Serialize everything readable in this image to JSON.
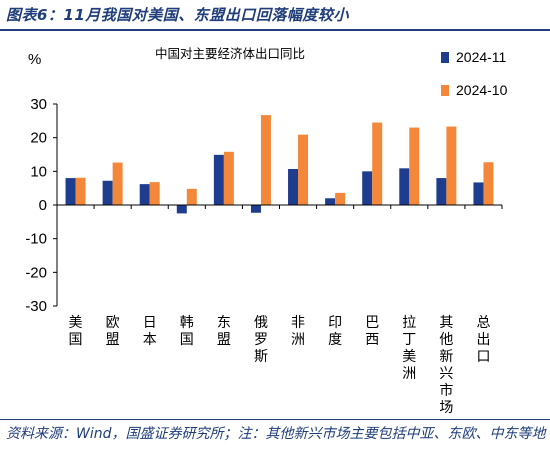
{
  "figure_title": "图表6：11月我国对美国、东盟出口回落幅度较小",
  "source_note": "资料来源：Wind，国盛证券研究所；注：其他新兴市场主要包括中亚、东欧、中东等地",
  "colors": {
    "series_2024_11": "#1f3d8f",
    "series_2024_10": "#f4883a",
    "title_blue": "#1f3d7a"
  },
  "chart_data": {
    "type": "bar",
    "title": "中国对主要经济体出口同比",
    "ylabel": "%",
    "ylim": [
      -30,
      30
    ],
    "yticks": [
      30,
      20,
      10,
      0,
      -10,
      -20,
      -30
    ],
    "grid": false,
    "legend_position": "top-right",
    "categories": [
      "美国",
      "欧盟",
      "日本",
      "韩国",
      "东盟",
      "俄罗斯",
      "非洲",
      "印度",
      "巴西",
      "拉丁美洲",
      "其他新兴市场",
      "总出口"
    ],
    "series": [
      {
        "name": "2024-11",
        "values": [
          8.0,
          7.2,
          6.2,
          -2.5,
          14.9,
          -2.3,
          10.7,
          2.0,
          10.0,
          10.9,
          8.0,
          6.7
        ]
      },
      {
        "name": "2024-10",
        "values": [
          8.1,
          12.6,
          6.8,
          4.8,
          15.8,
          26.7,
          20.9,
          3.6,
          24.5,
          23.0,
          23.3,
          12.7
        ]
      }
    ]
  }
}
